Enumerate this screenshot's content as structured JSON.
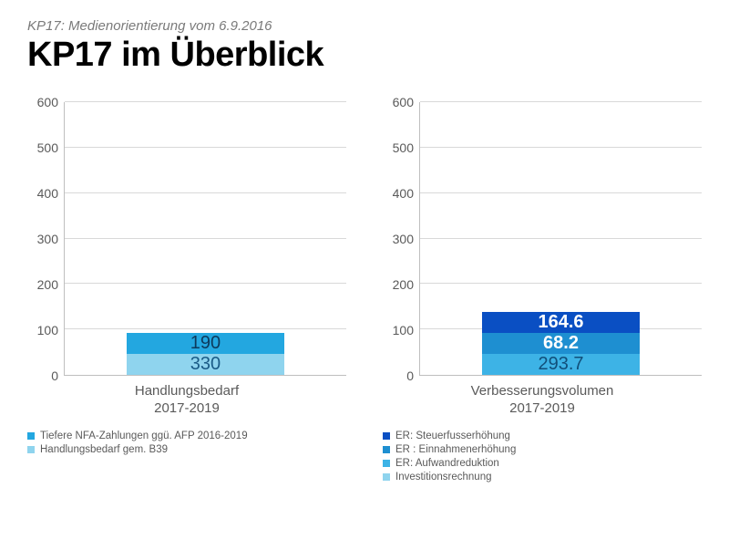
{
  "header": {
    "subtitle": "KP17: Medienorientierung vom 6.9.2016",
    "title": "KP17 im Überblick"
  },
  "chart_left": {
    "type": "stacked-bar",
    "ylim": [
      0,
      600
    ],
    "ytick_step": 100,
    "grid_color": "#d9d9d9",
    "axis_color": "#bfbfbf",
    "tick_label_color": "#5a5a5a",
    "tick_fontsize": 14,
    "category_label_line1": "Handlungsbedarf",
    "category_label_line2": "2017-2019",
    "bar_left_pct": 22,
    "bar_width_pct": 56,
    "segments": [
      {
        "value": 330,
        "label": "330",
        "color": "#8fd4ee",
        "text_color": "#1a5b87"
      },
      {
        "value": 190,
        "label": "190",
        "color": "#23a7e0",
        "text_color": "#0d3a5c"
      }
    ],
    "legend": [
      {
        "swatch": "#23a7e0",
        "label": "Tiefere NFA-Zahlungen ggü. AFP 2016-2019"
      },
      {
        "swatch": "#8fd4ee",
        "label": "Handlungsbedarf gem. B39"
      }
    ]
  },
  "chart_right": {
    "type": "stacked-bar",
    "ylim": [
      0,
      600
    ],
    "ytick_step": 100,
    "grid_color": "#d9d9d9",
    "axis_color": "#bfbfbf",
    "tick_label_color": "#5a5a5a",
    "tick_fontsize": 14,
    "category_label_line1": "Verbesserungsvolumen",
    "category_label_line2": "2017-2019",
    "bar_left_pct": 22,
    "bar_width_pct": 56,
    "segments": [
      {
        "value": 293.7,
        "label": "293.7",
        "color": "#3db3e6",
        "text_color": "#114f7a"
      },
      {
        "value": 68.2,
        "label": "68.2",
        "color": "#1e8fd1",
        "text_color": "#ffffff"
      },
      {
        "value": 164.6,
        "label": "164.6",
        "color": "#0a4fc3",
        "text_color": "#ffffff"
      }
    ],
    "legend": [
      {
        "swatch": "#0a4fc3",
        "label": "ER: Steuerfusserhöhung"
      },
      {
        "swatch": "#1e8fd1",
        "label": "ER : Einnahmenerhöhung"
      },
      {
        "swatch": "#3db3e6",
        "label": "ER: Aufwandreduktion"
      },
      {
        "swatch": "#8fd4ee",
        "label": "Investitionsrechnung"
      }
    ]
  }
}
